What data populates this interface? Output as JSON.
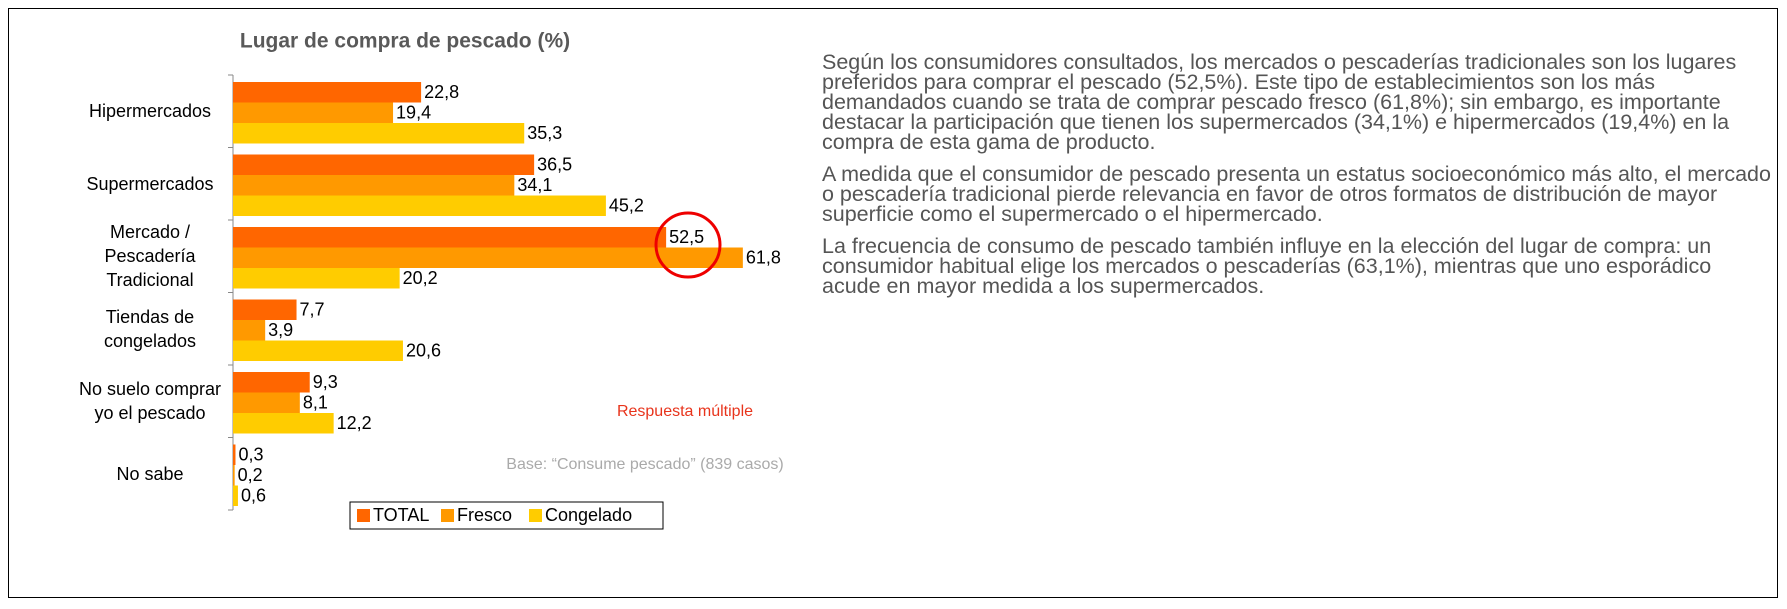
{
  "chart_data": {
    "type": "bar",
    "orientation": "horizontal",
    "title": "Lugar de compra de pescado (%)",
    "categories": [
      "Hipermercados",
      "Supermercados",
      "Mercado / Pescadería Tradicional",
      "Tiendas de congelados",
      "No suelo comprar yo el pescado",
      "No sabe"
    ],
    "series": [
      {
        "name": "TOTAL",
        "color": "#ff6600",
        "values": [
          22.8,
          36.5,
          52.5,
          7.7,
          9.3,
          0.3
        ],
        "value_labels": [
          "22,8",
          "36,5",
          "52,5",
          "7,7",
          "9,3",
          "0,3"
        ]
      },
      {
        "name": "Fresco",
        "color": "#ff9900",
        "values": [
          19.4,
          34.1,
          61.8,
          3.9,
          8.1,
          0.2
        ],
        "value_labels": [
          "19,4",
          "34,1",
          "61,8",
          "3,9",
          "8,1",
          "0,2"
        ]
      },
      {
        "name": "Congelado",
        "color": "#ffcc00",
        "values": [
          35.3,
          45.2,
          20.2,
          20.6,
          12.2,
          0.6
        ],
        "value_labels": [
          "35,3",
          "45,2",
          "20,2",
          "20,6",
          "12,2",
          "0,6"
        ]
      }
    ],
    "xlim": [
      0,
      70
    ],
    "annotations": [
      "Respuesta múltiple",
      "Base: “Consume pescado” (839 casos)"
    ]
  },
  "text": {
    "paragraphs": [
      "Según los consumidores consultados, los mercados o pescaderías tradicionales son los lugares preferidos para comprar el pescado (52,5%). Este tipo de establecimientos son los más demandados cuando se trata de comprar pescado fresco (61,8%); sin embargo, es importante destacar la participación que tienen los supermercados (34,1%) e hipermercados (19,4%) en la compra de esta gama de producto.",
      "A medida que el consumidor de pescado presenta un estatus socioeconómico más alto, el mercado o pescadería tradicional pierde relevancia en favor de otros formatos de distribución de mayor superficie como el supermercado o el hipermercado.",
      "La frecuencia de consumo de pescado también influye en la elección del lugar de compra: un consumidor habitual elige los mercados o pescaderías (63,1%), mientras que uno esporádico acude en mayor medida a los supermercados."
    ]
  }
}
